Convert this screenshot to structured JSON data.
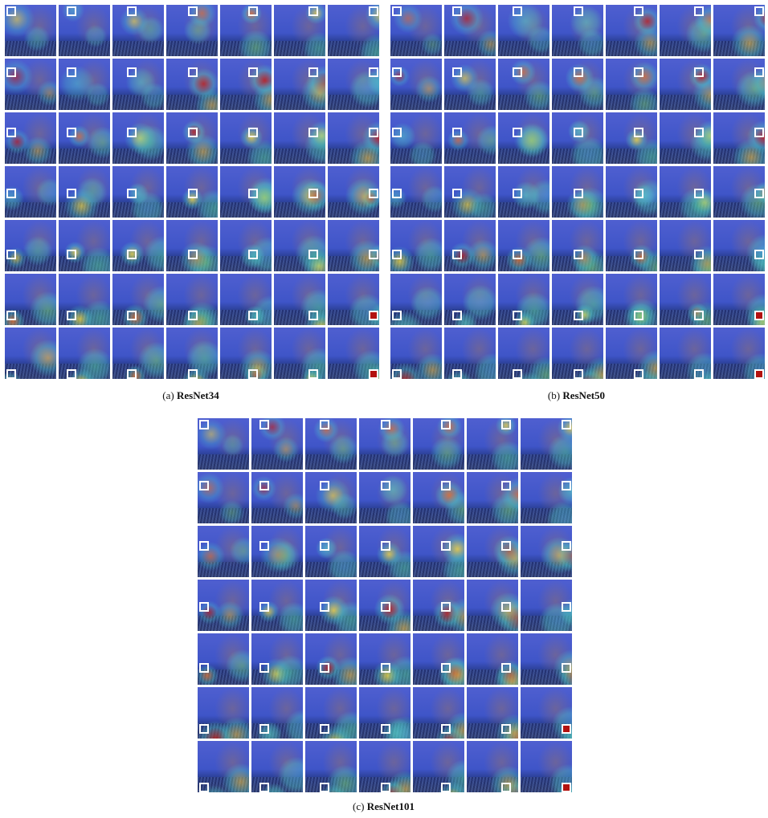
{
  "panels": [
    {
      "id": "a",
      "letter": "(a)",
      "name": "ResNet34"
    },
    {
      "id": "b",
      "letter": "(b)",
      "name": "ResNet50"
    },
    {
      "id": "c",
      "letter": "(c)",
      "name": "ResNet101"
    }
  ],
  "grid": {
    "rows": 7,
    "cols": 7
  }
}
